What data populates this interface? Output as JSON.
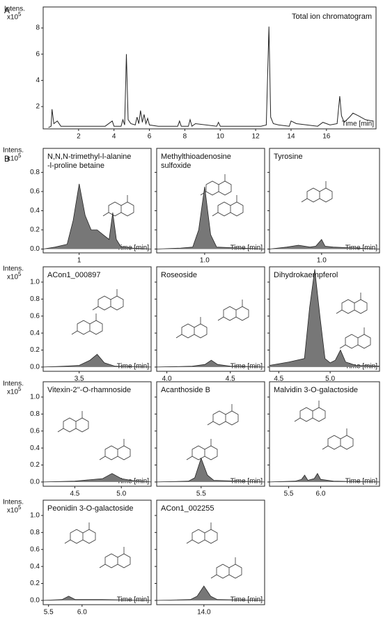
{
  "chart_data": [
    {
      "type": "line",
      "panel_label": "A",
      "annotation": "Total ion chromatogram",
      "y_label": "Intens.",
      "y_scale": {
        "base": "x10",
        "exponent": "5"
      },
      "x_label": "Time [min]",
      "color": "#222222",
      "x": [
        0.3,
        0.45,
        0.5,
        0.6,
        0.8,
        1.0,
        1.5,
        2.5,
        3.5,
        3.9,
        4.0,
        4.4,
        4.5,
        4.6,
        4.7,
        4.8,
        4.95,
        5.2,
        5.3,
        5.4,
        5.5,
        5.6,
        5.7,
        5.8,
        5.9,
        6.0,
        6.5,
        7.6,
        7.7,
        7.8,
        8.2,
        8.3,
        8.4,
        8.6,
        9.8,
        9.9,
        10,
        11,
        12.3,
        12.6,
        12.75,
        12.85,
        13.0,
        13.3,
        13.9,
        14.0,
        14.3,
        15.5,
        15.8,
        16.2,
        16.6,
        16.75,
        16.85,
        17.0,
        17.3,
        17.5,
        17.8,
        18.2,
        18.6
      ],
      "values": [
        0.4,
        0.5,
        1.8,
        0.7,
        0.9,
        0.5,
        0.5,
        0.5,
        0.5,
        0.9,
        0.5,
        0.5,
        1.0,
        0.6,
        6.0,
        1.0,
        0.7,
        0.6,
        1.2,
        0.7,
        1.7,
        0.8,
        1.4,
        0.7,
        1.1,
        0.6,
        0.5,
        0.5,
        0.9,
        0.5,
        0.5,
        1.0,
        0.5,
        0.7,
        0.5,
        0.8,
        0.5,
        0.5,
        0.5,
        0.6,
        8.1,
        1.2,
        0.7,
        0.6,
        0.5,
        0.9,
        0.7,
        0.5,
        0.8,
        0.6,
        0.7,
        2.8,
        1.3,
        0.8,
        1.2,
        1.5,
        1.3,
        1.0,
        0.9
      ],
      "xlim": [
        0,
        18.8
      ],
      "ylim": [
        0.3,
        9.6
      ],
      "xticks": [
        2,
        4,
        6,
        8,
        10,
        12,
        14,
        16
      ],
      "yticks": [
        2,
        4,
        6,
        8
      ]
    },
    {
      "type": "area",
      "panel_label": "B",
      "title": [
        "N,N,N-trimethyl-l-alanine",
        "-l-proline betaine"
      ],
      "y_label": "Intens.",
      "y_scale": {
        "base": "x10",
        "exponent": "5"
      },
      "x_label": "Time [min]",
      "color": "#777777",
      "x": [
        0.7,
        0.8,
        0.9,
        0.95,
        1.0,
        1.05,
        1.1,
        1.15,
        1.2,
        1.25,
        1.28,
        1.31,
        1.35,
        1.45,
        1.6
      ],
      "values": [
        0.0,
        0.02,
        0.05,
        0.3,
        0.68,
        0.35,
        0.2,
        0.2,
        0.15,
        0.1,
        0.38,
        0.1,
        0.02,
        0.01,
        0.0
      ],
      "xlim": [
        0.7,
        1.6
      ],
      "ylim": [
        -0.04,
        1.05
      ],
      "xticks": [
        1
      ],
      "yticks": [
        {
          "value": 0,
          "label": "0.0"
        },
        0.2,
        0.4,
        0.6,
        0.8
      ]
    },
    {
      "type": "area",
      "title": [
        "Methylthioadenosine",
        "sulfoxide"
      ],
      "x_label": "Time [min]",
      "color": "#777777",
      "x": [
        0.6,
        0.8,
        0.9,
        0.95,
        1.0,
        1.05,
        1.1,
        1.3,
        1.5
      ],
      "values": [
        0,
        0.01,
        0.02,
        0.2,
        0.65,
        0.15,
        0.02,
        0.01,
        0
      ],
      "xlim": [
        0.6,
        1.5
      ],
      "ylim": [
        -0.04,
        1.05
      ],
      "xticks": [
        {
          "value": 1,
          "label": "1.0"
        }
      ],
      "yticks": [
        {
          "value": 0,
          "label": "0.0"
        },
        0.2,
        0.4,
        0.6,
        0.8
      ]
    },
    {
      "type": "area",
      "title": [
        "Tyrosine"
      ],
      "x_label": "Time [min]",
      "color": "#777777",
      "x": [
        0.55,
        0.7,
        0.8,
        0.9,
        0.95,
        1.0,
        1.03,
        1.1,
        1.3,
        1.5
      ],
      "values": [
        0,
        0.02,
        0.04,
        0.02,
        0.03,
        0.1,
        0.03,
        0.02,
        0.01,
        0
      ],
      "xlim": [
        0.55,
        1.5
      ],
      "ylim": [
        -0.04,
        1.05
      ],
      "xticks": [
        {
          "value": 1,
          "label": "1.0"
        }
      ],
      "yticks": [
        {
          "value": 0,
          "label": "0.0"
        },
        0.2,
        0.4,
        0.6,
        0.8
      ]
    },
    {
      "type": "area",
      "title": [
        "ACon1_000897"
      ],
      "y_label": "Intens.",
      "y_scale": {
        "base": "x10",
        "exponent": "5"
      },
      "x_label": "Time [min]",
      "color": "#777777",
      "x": [
        3.0,
        3.3,
        3.5,
        3.65,
        3.75,
        3.85,
        4.0,
        4.5
      ],
      "values": [
        0,
        0.01,
        0.02,
        0.08,
        0.15,
        0.05,
        0.01,
        0
      ],
      "xlim": [
        3.0,
        4.5
      ],
      "ylim": [
        -0.05,
        1.18
      ],
      "xticks": [
        3.5
      ],
      "yticks": [
        {
          "value": 0,
          "label": "0.0"
        },
        0.2,
        0.4,
        0.6,
        0.8,
        {
          "value": 1,
          "label": "1.0"
        }
      ]
    },
    {
      "type": "area",
      "title": [
        "Roseoside"
      ],
      "x_label": "Time [min]",
      "color": "#777777",
      "x": [
        3.92,
        4.2,
        4.3,
        4.35,
        4.4,
        4.5,
        4.77
      ],
      "values": [
        0,
        0.01,
        0.03,
        0.08,
        0.03,
        0.01,
        0
      ],
      "xlim": [
        3.92,
        4.77
      ],
      "ylim": [
        -0.05,
        1.18
      ],
      "xticks": [
        {
          "value": 4,
          "label": "4.0"
        },
        4.5
      ],
      "yticks": [
        {
          "value": 0,
          "label": "0.0"
        },
        0.2,
        0.4,
        0.6,
        0.8,
        {
          "value": 1,
          "label": "1.0"
        }
      ]
    },
    {
      "type": "area",
      "title": [
        "Dihydrokaempferol"
      ],
      "x_label": "Time [min]",
      "color": "#777777",
      "x": [
        4.41,
        4.6,
        4.75,
        4.8,
        4.85,
        4.9,
        4.95,
        5.0,
        5.05,
        5.1,
        5.15,
        5.25,
        5.48
      ],
      "values": [
        0.02,
        0.06,
        0.1,
        0.7,
        1.15,
        0.6,
        0.1,
        0.05,
        0.08,
        0.2,
        0.06,
        0.02,
        0.01
      ],
      "xlim": [
        4.41,
        5.48
      ],
      "ylim": [
        -0.05,
        1.18
      ],
      "xticks": [
        4.5,
        {
          "value": 5,
          "label": "5.0"
        }
      ],
      "yticks": [
        {
          "value": 0,
          "label": "0.0"
        },
        0.2,
        0.4,
        0.6,
        0.8,
        {
          "value": 1,
          "label": "1.0"
        }
      ]
    },
    {
      "type": "area",
      "title": [
        "Vitexin-2''-O-rhamnoside"
      ],
      "y_label": "Intens.",
      "y_scale": {
        "base": "x10",
        "exponent": "5"
      },
      "x_label": "Time [min]",
      "color": "#777777",
      "x": [
        4.16,
        4.5,
        4.8,
        4.9,
        5.0,
        5.1,
        5.32
      ],
      "values": [
        0,
        0.01,
        0.04,
        0.1,
        0.04,
        0.02,
        0
      ],
      "xlim": [
        4.16,
        5.32
      ],
      "ylim": [
        -0.05,
        1.18
      ],
      "xticks": [
        4.5,
        {
          "value": 5,
          "label": "5.0"
        }
      ],
      "yticks": [
        {
          "value": 0,
          "label": "0.0"
        },
        0.2,
        0.4,
        0.6,
        0.8,
        {
          "value": 1,
          "label": "1.0"
        }
      ]
    },
    {
      "type": "area",
      "title": [
        "Acanthoside B"
      ],
      "x_label": "Time [min]",
      "color": "#777777",
      "x": [
        5.15,
        5.4,
        5.45,
        5.5,
        5.55,
        5.6,
        6.0
      ],
      "values": [
        0,
        0.01,
        0.05,
        0.28,
        0.08,
        0.02,
        0
      ],
      "xlim": [
        5.15,
        6.0
      ],
      "ylim": [
        -0.05,
        1.18
      ],
      "xticks": [
        5.5
      ],
      "yticks": [
        {
          "value": 0,
          "label": "0.0"
        },
        0.2,
        0.4,
        0.6,
        0.8,
        {
          "value": 1,
          "label": "1.0"
        }
      ]
    },
    {
      "type": "area",
      "title": [
        "Malvidin 3-O-galactoside"
      ],
      "x_label": "Time [min]",
      "color": "#777777",
      "x": [
        5.2,
        5.6,
        5.7,
        5.75,
        5.8,
        5.9,
        5.95,
        6.0,
        6.2,
        6.92
      ],
      "values": [
        0,
        0.01,
        0.03,
        0.08,
        0.02,
        0.04,
        0.1,
        0.03,
        0.01,
        0
      ],
      "xlim": [
        5.2,
        6.92
      ],
      "ylim": [
        -0.05,
        1.18
      ],
      "xticks": [
        5.5,
        {
          "value": 6,
          "label": "6.0"
        }
      ],
      "yticks": [
        {
          "value": 0,
          "label": "0.0"
        },
        0.2,
        0.4,
        0.6,
        0.8,
        {
          "value": 1,
          "label": "1.0"
        }
      ]
    },
    {
      "type": "area",
      "title": [
        "Peonidin 3-O-galactoside"
      ],
      "y_label": "Intens.",
      "y_scale": {
        "base": "x10",
        "exponent": "5"
      },
      "x_label": "Time [min]",
      "color": "#777777",
      "x": [
        5.42,
        5.7,
        5.8,
        5.9,
        6.3,
        7.03
      ],
      "values": [
        0,
        0.01,
        0.05,
        0.01,
        0.01,
        0
      ],
      "xlim": [
        5.42,
        7.03
      ],
      "ylim": [
        -0.05,
        1.18
      ],
      "xticks": [
        5.5,
        {
          "value": 6,
          "label": "6.0"
        }
      ],
      "yticks": [
        {
          "value": 0,
          "label": "0.0"
        },
        0.2,
        0.4,
        0.6,
        0.8,
        {
          "value": 1,
          "label": "1.0"
        }
      ]
    },
    {
      "type": "area",
      "title": [
        "ACon1_002255"
      ],
      "x_label": "Time [min]",
      "color": "#777777",
      "x": [
        13.65,
        13.9,
        13.95,
        14.0,
        14.05,
        14.1,
        14.45
      ],
      "values": [
        0,
        0.01,
        0.05,
        0.17,
        0.05,
        0.01,
        0
      ],
      "xlim": [
        13.65,
        14.45
      ],
      "ylim": [
        -0.05,
        1.18
      ],
      "xticks": [
        {
          "value": 14,
          "label": "14.0"
        }
      ],
      "yticks": [
        {
          "value": 0,
          "label": "0.0"
        },
        0.2,
        0.4,
        0.6,
        0.8,
        {
          "value": 1,
          "label": "1.0"
        }
      ]
    }
  ]
}
